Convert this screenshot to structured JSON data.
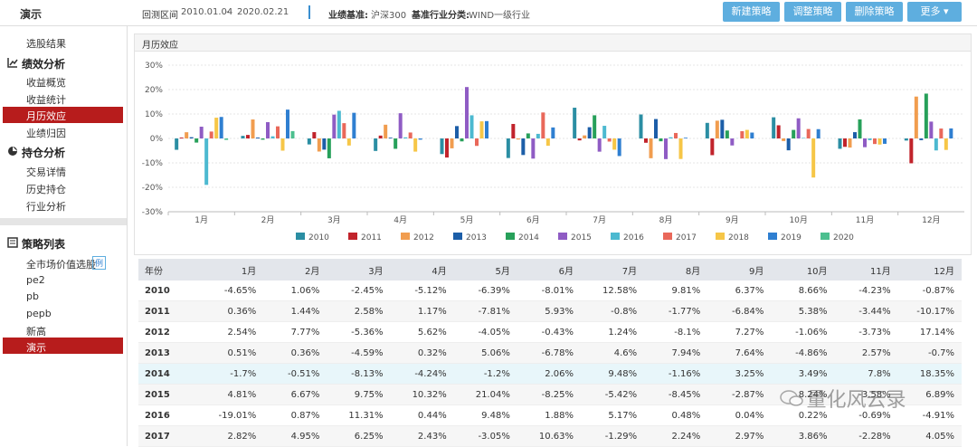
{
  "header": {
    "title": "演示",
    "range_label": "回测区间",
    "range_start": "2010.01.04",
    "range_sep": "-",
    "range_end": "2020.02.21",
    "benchmark_label": "业绩基准:",
    "benchmark": "沪深300",
    "industry_label": "基准行业分类:",
    "industry": "WIND一级行业",
    "buttons": [
      "新建策略",
      "调整策略",
      "删除策略",
      "更多"
    ]
  },
  "sidebar": {
    "top": "选股结果",
    "perf_title": "绩效分析",
    "perf_items": [
      "收益概览",
      "收益统计",
      "月历效应",
      "业绩归因"
    ],
    "hold_title": "持仓分析",
    "hold_items": [
      "交易详情",
      "历史持仓",
      "行业分析"
    ],
    "list_title": "策略列表",
    "list_items": [
      "全市场价值选股",
      "pe2",
      "pb",
      "pepb",
      "新高",
      "演示"
    ],
    "example_tag": "例"
  },
  "chart_data": {
    "type": "bar",
    "title": "月历效应",
    "categories": [
      "1月",
      "2月",
      "3月",
      "4月",
      "5月",
      "6月",
      "7月",
      "8月",
      "9月",
      "10月",
      "11月",
      "12月"
    ],
    "ylim": [
      -30,
      30
    ],
    "yticks": [
      {
        "value": -30,
        "label": "-30%"
      },
      {
        "value": -20,
        "label": "-20%"
      },
      {
        "value": -10,
        "label": "-10%"
      },
      {
        "value": 0,
        "label": "0%"
      },
      {
        "value": 10,
        "label": "10%"
      },
      {
        "value": 20,
        "label": "20%"
      },
      {
        "value": 30,
        "label": "30%"
      }
    ],
    "grid": true,
    "series": [
      {
        "name": "2010",
        "color": "#2b8ea3",
        "values": [
          -4.65,
          1.06,
          -2.45,
          -5.12,
          -6.39,
          -8.01,
          12.58,
          9.81,
          6.37,
          8.66,
          -4.23,
          -0.87
        ]
      },
      {
        "name": "2011",
        "color": "#c1232b",
        "values": [
          0.36,
          1.44,
          2.58,
          1.17,
          -7.81,
          5.93,
          -0.8,
          -1.77,
          -6.84,
          5.38,
          -3.44,
          -10.17
        ]
      },
      {
        "name": "2012",
        "color": "#f19d4f",
        "values": [
          2.54,
          7.77,
          -5.36,
          5.62,
          -4.05,
          -0.43,
          1.24,
          -8.1,
          7.27,
          -1.06,
          -3.73,
          17.14
        ]
      },
      {
        "name": "2013",
        "color": "#1c5ea8",
        "values": [
          0.51,
          0.36,
          -4.59,
          0.32,
          5.06,
          -6.78,
          4.6,
          7.94,
          7.64,
          -4.86,
          2.57,
          -0.7
        ]
      },
      {
        "name": "2014",
        "color": "#27a05a",
        "values": [
          -1.7,
          -0.51,
          -8.13,
          -4.24,
          -1.2,
          2.06,
          9.48,
          -1.16,
          3.25,
          3.49,
          7.8,
          18.35
        ]
      },
      {
        "name": "2015",
        "color": "#8f5cc4",
        "values": [
          4.81,
          6.67,
          9.75,
          10.32,
          21.04,
          -8.25,
          -5.42,
          -8.45,
          -2.87,
          8.24,
          -3.58,
          6.89
        ]
      },
      {
        "name": "2016",
        "color": "#4cb9d0",
        "values": [
          -19.01,
          0.87,
          11.31,
          0.44,
          9.48,
          1.88,
          5.17,
          0.48,
          0.04,
          0.22,
          -0.69,
          -4.91
        ]
      },
      {
        "name": "2017",
        "color": "#e9685a",
        "values": [
          2.82,
          4.95,
          6.25,
          2.43,
          -3.05,
          10.63,
          -1.29,
          2.24,
          2.97,
          3.86,
          -2.28,
          4.05
        ]
      },
      {
        "name": "2018",
        "color": "#f6c647",
        "values": [
          8.5,
          -5.0,
          -2.9,
          -5.4,
          7.0,
          -3.0,
          -4.6,
          -8.4,
          3.5,
          -16.0,
          -2.5,
          -4.7
        ]
      },
      {
        "name": "2019",
        "color": "#2f7fd1",
        "values": [
          8.8,
          11.8,
          10.5,
          -0.5,
          7.1,
          4.5,
          -7.2,
          0.3,
          2.4,
          3.8,
          -2.2,
          4.1
        ]
      },
      {
        "name": "2020",
        "color": "#4cbf8f",
        "values": [
          -0.6,
          3.0,
          null,
          null,
          null,
          null,
          null,
          null,
          null,
          null,
          null,
          null
        ]
      }
    ]
  },
  "table": {
    "columns": [
      "年份",
      "1月",
      "2月",
      "3月",
      "4月",
      "5月",
      "6月",
      "7月",
      "8月",
      "9月",
      "10月",
      "11月",
      "12月"
    ],
    "rows": [
      [
        "2010",
        "-4.65%",
        "1.06%",
        "-2.45%",
        "-5.12%",
        "-6.39%",
        "-8.01%",
        "12.58%",
        "9.81%",
        "6.37%",
        "8.66%",
        "-4.23%",
        "-0.87%"
      ],
      [
        "2011",
        "0.36%",
        "1.44%",
        "2.58%",
        "1.17%",
        "-7.81%",
        "5.93%",
        "-0.8%",
        "-1.77%",
        "-6.84%",
        "5.38%",
        "-3.44%",
        "-10.17%"
      ],
      [
        "2012",
        "2.54%",
        "7.77%",
        "-5.36%",
        "5.62%",
        "-4.05%",
        "-0.43%",
        "1.24%",
        "-8.1%",
        "7.27%",
        "-1.06%",
        "-3.73%",
        "17.14%"
      ],
      [
        "2013",
        "0.51%",
        "0.36%",
        "-4.59%",
        "0.32%",
        "5.06%",
        "-6.78%",
        "4.6%",
        "7.94%",
        "7.64%",
        "-4.86%",
        "2.57%",
        "-0.7%"
      ],
      [
        "2014",
        "-1.7%",
        "-0.51%",
        "-8.13%",
        "-4.24%",
        "-1.2%",
        "2.06%",
        "9.48%",
        "-1.16%",
        "3.25%",
        "3.49%",
        "7.8%",
        "18.35%"
      ],
      [
        "2015",
        "4.81%",
        "6.67%",
        "9.75%",
        "10.32%",
        "21.04%",
        "-8.25%",
        "-5.42%",
        "-8.45%",
        "-2.87%",
        "8.24%",
        "-3.58%",
        "6.89%"
      ],
      [
        "2016",
        "-19.01%",
        "0.87%",
        "11.31%",
        "0.44%",
        "9.48%",
        "1.88%",
        "5.17%",
        "0.48%",
        "0.04%",
        "0.22%",
        "-0.69%",
        "-4.91%"
      ],
      [
        "2017",
        "2.82%",
        "4.95%",
        "6.25%",
        "2.43%",
        "-3.05%",
        "10.63%",
        "-1.29%",
        "2.24%",
        "2.97%",
        "3.86%",
        "-2.28%",
        "4.05%"
      ]
    ]
  },
  "watermark": "量化风云录"
}
